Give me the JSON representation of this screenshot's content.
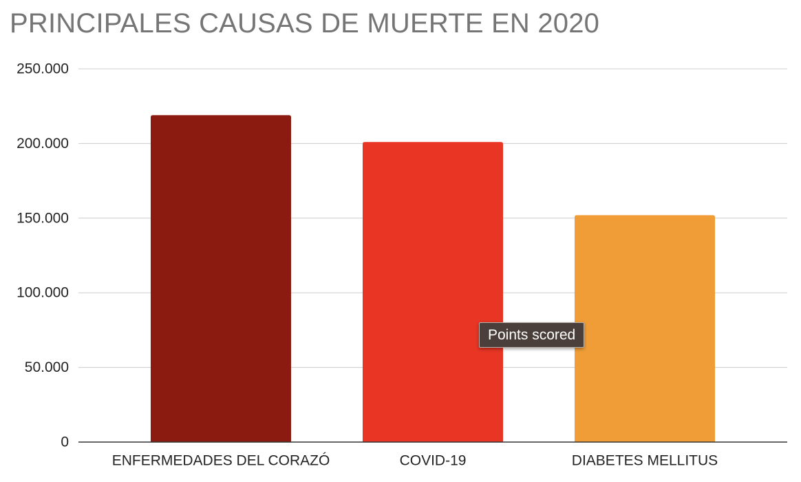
{
  "chart_data": {
    "type": "bar",
    "title": "PRINCIPALES CAUSAS DE MUERTE EN 2020",
    "categories": [
      "ENFERMEDADES DEL CORAZÓ",
      "COVID-19",
      "DIABETES MELLITUS"
    ],
    "values": [
      219000,
      201000,
      152000
    ],
    "colors": [
      "#8b1a10",
      "#e83524",
      "#f09d38"
    ],
    "ylim": [
      0,
      250000
    ],
    "yticks": [
      0,
      50000,
      100000,
      150000,
      200000,
      250000
    ],
    "ytick_labels": [
      "0",
      "50.000",
      "100.000",
      "150.000",
      "200.000",
      "250.000"
    ],
    "xlabel": "",
    "ylabel": "",
    "grid": true,
    "legend": "none"
  },
  "tooltip": {
    "text": "Points scored"
  }
}
